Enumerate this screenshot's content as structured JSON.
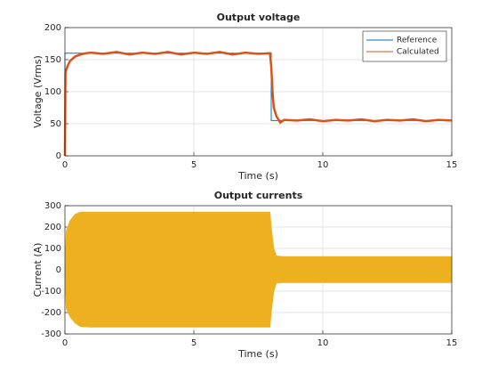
{
  "chart_data": [
    {
      "type": "line",
      "title": "Output voltage",
      "xlabel": "Time (s)",
      "ylabel": "Voltage (Vrms)",
      "xlim": [
        0,
        15
      ],
      "xticks": [
        0,
        5,
        10,
        15
      ],
      "ylim": [
        0,
        200
      ],
      "yticks": [
        0,
        50,
        100,
        150,
        200
      ],
      "grid": true,
      "legend": "northeast",
      "series": [
        {
          "name": "Reference",
          "color": "#0072bd",
          "x": [
            0,
            0,
            8,
            8,
            15
          ],
          "values": [
            0,
            160,
            160,
            55,
            55
          ]
        },
        {
          "name": "Calculated",
          "color": "#d95319",
          "x": [
            0,
            0.02,
            0.1,
            0.2,
            0.4,
            0.6,
            0.8,
            1,
            1.5,
            2,
            2.5,
            3,
            3.5,
            4,
            4.5,
            5,
            5.5,
            6,
            6.5,
            7,
            7.5,
            7.95,
            8.0,
            8.05,
            8.1,
            8.2,
            8.35,
            8.5,
            9,
            9.5,
            10,
            10.5,
            11,
            11.5,
            12,
            12.5,
            13,
            13.5,
            14,
            14.5,
            15
          ],
          "values": [
            0,
            130,
            140,
            148,
            155,
            158,
            160,
            161,
            159,
            162,
            158,
            161,
            159,
            162,
            158,
            161,
            159,
            162,
            158,
            161,
            159,
            160,
            140,
            100,
            75,
            62,
            52,
            56,
            55,
            57,
            54,
            56,
            55,
            57,
            54,
            56,
            55,
            57,
            54,
            56,
            55
          ]
        }
      ]
    },
    {
      "type": "band",
      "title": "Output currents",
      "xlabel": "Time (s)",
      "ylabel": "Current (A)",
      "xlim": [
        0,
        15
      ],
      "xticks": [
        0,
        5,
        10,
        15
      ],
      "ylim": [
        -300,
        300
      ],
      "yticks": [
        -300,
        -200,
        -100,
        0,
        100,
        200,
        300
      ],
      "grid": true,
      "x": [
        0,
        0.05,
        0.2,
        0.4,
        0.6,
        1,
        2,
        3,
        4,
        5,
        6,
        7,
        7.95,
        8.0,
        8.1,
        8.2,
        8.5,
        9,
        10,
        11,
        12,
        13,
        14,
        15
      ],
      "series": [
        {
          "color": "#edb120",
          "values": [
            0,
            180,
            230,
            260,
            270,
            270,
            270,
            270,
            270,
            270,
            270,
            270,
            270,
            200,
            100,
            65,
            62,
            62,
            62,
            62,
            62,
            62,
            62,
            62
          ]
        },
        {
          "color": "#edb120",
          "values": [
            0,
            -180,
            -220,
            -250,
            -265,
            -268,
            -268,
            -268,
            -268,
            -268,
            -268,
            -268,
            -268,
            -200,
            -100,
            -62,
            -60,
            -60,
            -60,
            -60,
            -60,
            -60,
            -60,
            -60
          ]
        }
      ]
    }
  ]
}
